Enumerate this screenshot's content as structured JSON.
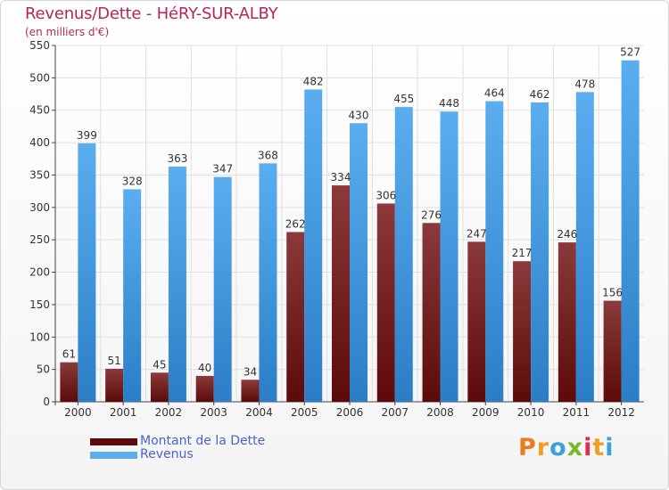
{
  "colors": {
    "dette_top": "#8a3a3a",
    "dette_bottom": "#5c0a0a",
    "revenus_top": "#5aaef0",
    "revenus_bottom": "#2b7ec6",
    "title": "#b8255a",
    "legend_text": "#4a62cc",
    "axis_text": "#333333",
    "grid": "#e0e0e0"
  },
  "header": {
    "title": "Revenus/Dette - HéRY-SUR-ALBY",
    "subtitle": "(en milliers d'€)"
  },
  "legend": [
    {
      "label": "Montant de la Dette",
      "color_key": "dette"
    },
    {
      "label": "Revenus",
      "color_key": "revenus"
    }
  ],
  "brand": {
    "letters": [
      "P",
      "r",
      "o",
      "x",
      "i",
      "t",
      "i"
    ],
    "colors": [
      "#e87c1e",
      "#f0a020",
      "#3aa0d8",
      "#7ab82a",
      "#d8304a",
      "#f0a020",
      "#3aa0d8"
    ]
  },
  "chart_data": {
    "type": "bar",
    "title": "Revenus/Dette - HéRY-SUR-ALBY",
    "ylabel": "(en milliers d'€)",
    "xlabel": "",
    "ylim": [
      0,
      550
    ],
    "yticks": [
      0,
      50,
      100,
      150,
      200,
      250,
      300,
      350,
      400,
      450,
      500,
      550
    ],
    "grid": true,
    "legend_position": "bottom-left",
    "categories": [
      "2000",
      "2001",
      "2002",
      "2003",
      "2004",
      "2005",
      "2006",
      "2007",
      "2008",
      "2009",
      "2010",
      "2011",
      "2012"
    ],
    "series": [
      {
        "name": "Montant de la Dette",
        "values": [
          61,
          51,
          45,
          40,
          34,
          262,
          334,
          306,
          276,
          247,
          217,
          246,
          156
        ]
      },
      {
        "name": "Revenus",
        "values": [
          399,
          328,
          363,
          347,
          368,
          482,
          430,
          455,
          448,
          464,
          462,
          478,
          527
        ]
      }
    ]
  }
}
